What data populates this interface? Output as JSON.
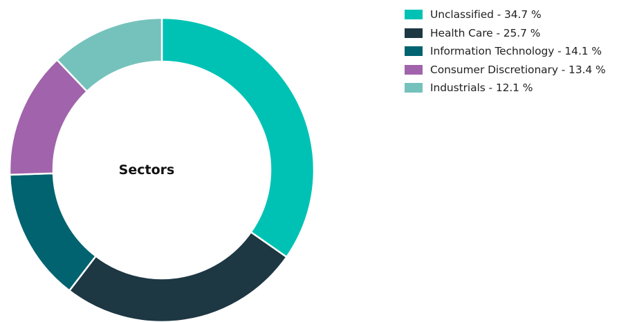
{
  "chart_data": {
    "type": "pie",
    "variant": "donut",
    "center_label": "Sectors",
    "slices": [
      {
        "label": "Unclassified - 34.7 %",
        "category": "Unclassified",
        "value": 34.7,
        "color": "#00C2B4"
      },
      {
        "label": "Health Care - 25.7 %",
        "category": "Health Care",
        "value": 25.7,
        "color": "#1D3743"
      },
      {
        "label": "Information Technology - 14.1 %",
        "category": "Information Technology",
        "value": 14.1,
        "color": "#00636F"
      },
      {
        "label": "Consumer Discretionary - 13.4 %",
        "category": "Consumer Discretionary",
        "value": 13.4,
        "color": "#A163AB"
      },
      {
        "label": "Industrials - 12.1 %",
        "category": "Industrials",
        "value": 12.1,
        "color": "#75C2BC"
      }
    ],
    "legend_position": "top-right",
    "start_angle": "12 o'clock",
    "direction": "clockwise"
  }
}
